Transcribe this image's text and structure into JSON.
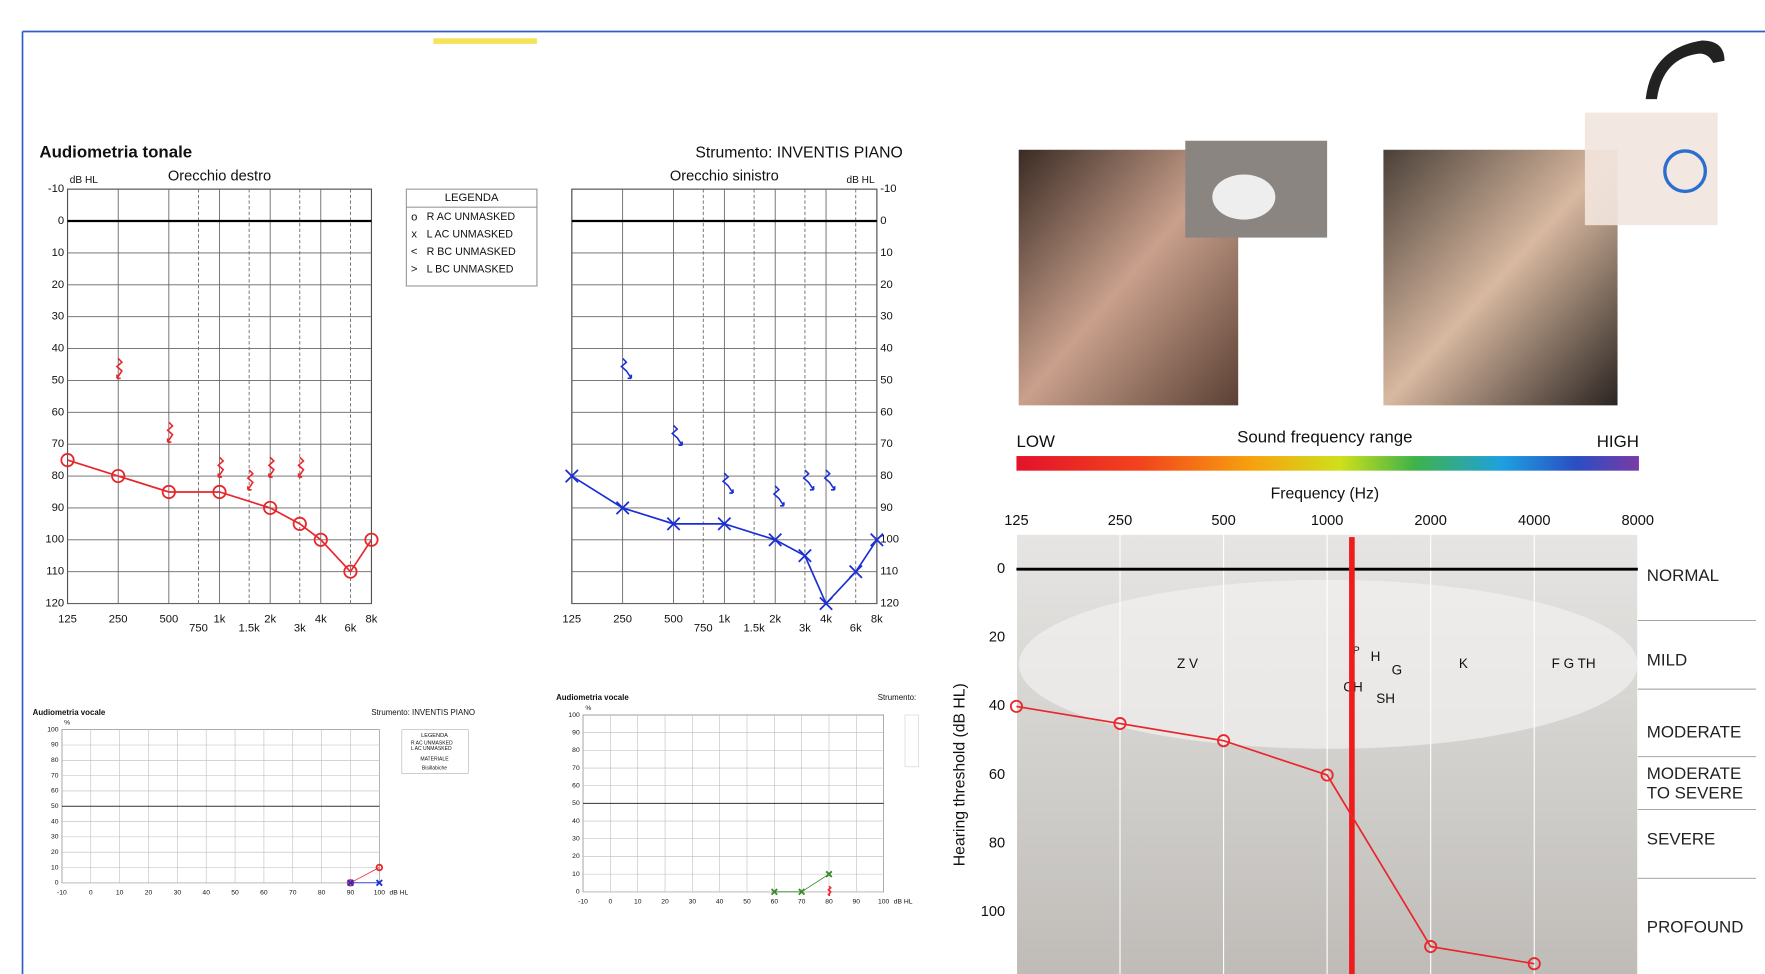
{
  "header": {
    "title": "Audiometria tonale",
    "instrument": "Strumento: INVENTIS PIANO"
  },
  "legend": {
    "title": "LEGENDA"
  },
  "chart_data": [
    {
      "type": "audiogram",
      "title": "Orecchio destro",
      "y_label": "dB HL",
      "log_x": true,
      "y_reversed": true,
      "xlim": [
        125,
        8000
      ],
      "xticks": [
        125,
        250,
        500,
        750,
        {
          "value": 1000,
          "label": "1k"
        },
        {
          "value": 1500,
          "label": "1.5k"
        },
        {
          "value": 2000,
          "label": "2k"
        },
        {
          "value": 3000,
          "label": "3k"
        },
        {
          "value": 4000,
          "label": "4k"
        },
        {
          "value": 6000,
          "label": "6k"
        },
        {
          "value": 8000,
          "label": "8k"
        }
      ],
      "ylim": [
        -10,
        120
      ],
      "yticks": [
        -10,
        0,
        10,
        20,
        30,
        40,
        50,
        60,
        70,
        80,
        90,
        100,
        110,
        120
      ],
      "series": [
        {
          "name": "R AC UNMASKED",
          "color": "#e8262b",
          "marker": "o",
          "line": true,
          "x": [
            125,
            250,
            500,
            1000,
            2000,
            3000,
            4000,
            6000,
            8000
          ],
          "values": [
            75,
            80,
            85,
            85,
            90,
            95,
            100,
            110,
            100
          ]
        },
        {
          "name": "R BC UNMASKED",
          "color": "#e8262b",
          "marker": "<",
          "line": false,
          "x": [
            250,
            500,
            1000,
            1500,
            2000,
            3000
          ],
          "values": [
            47,
            67,
            78,
            82,
            78,
            78
          ]
        }
      ]
    },
    {
      "type": "audiogram",
      "title": "Orecchio sinistro",
      "y_label": "dB HL",
      "log_x": true,
      "y_reversed": true,
      "xlim": [
        125,
        8000
      ],
      "xticks": [
        125,
        250,
        500,
        750,
        {
          "value": 1000,
          "label": "1k"
        },
        {
          "value": 1500,
          "label": "1.5k"
        },
        {
          "value": 2000,
          "label": "2k"
        },
        {
          "value": 3000,
          "label": "3k"
        },
        {
          "value": 4000,
          "label": "4k"
        },
        {
          "value": 6000,
          "label": "6k"
        },
        {
          "value": 8000,
          "label": "8k"
        }
      ],
      "ylim": [
        -10,
        120
      ],
      "yticks": [
        -10,
        0,
        10,
        20,
        30,
        40,
        50,
        60,
        70,
        80,
        90,
        100,
        110,
        120
      ],
      "series": [
        {
          "name": "L AC UNMASKED",
          "color": "#1a2fd6",
          "marker": "x",
          "line": true,
          "x": [
            125,
            250,
            500,
            1000,
            2000,
            3000,
            4000,
            6000,
            8000
          ],
          "values": [
            80,
            90,
            95,
            95,
            100,
            105,
            120,
            110,
            100
          ]
        },
        {
          "name": "L BC UNMASKED",
          "color": "#1a2fd6",
          "marker": ">",
          "line": false,
          "x": [
            250,
            500,
            1000,
            2000,
            3000,
            4000
          ],
          "values": [
            47,
            68,
            83,
            87,
            82,
            82
          ]
        }
      ]
    },
    {
      "type": "speech",
      "title": "Audiometria vocale",
      "instrument": "Strumento: INVENTIS PIANO",
      "y_label": "%",
      "x_label": "dB HL",
      "legend_title": "LEGENDA",
      "material_title": "MATERIALE",
      "material": "Bisillabiche",
      "xlim": [
        -10,
        100
      ],
      "xticks": [
        -10,
        0,
        10,
        20,
        30,
        40,
        50,
        60,
        70,
        80,
        90,
        100
      ],
      "ylim": [
        0,
        100
      ],
      "yticks": [
        0,
        10,
        20,
        30,
        40,
        50,
        60,
        70,
        80,
        90,
        100
      ],
      "series": [
        {
          "name": "R AC UNMASKED",
          "color": "#e8262b",
          "marker": "o",
          "line": true,
          "x": [
            90,
            100
          ],
          "values": [
            0,
            10
          ]
        },
        {
          "name": "L AC UNMASKED",
          "color": "#1a2fd6",
          "marker": "x",
          "line": true,
          "x": [
            90,
            100
          ],
          "values": [
            0,
            0
          ]
        }
      ]
    },
    {
      "type": "speech",
      "title": "Audiometria vocale",
      "instrument": "Strumento:",
      "y_label": "%",
      "x_label": "dB HL",
      "xlim": [
        -10,
        100
      ],
      "xticks": [
        -10,
        0,
        10,
        20,
        30,
        40,
        50,
        60,
        70,
        80,
        90,
        100
      ],
      "ylim": [
        0,
        100
      ],
      "yticks": [
        0,
        10,
        20,
        30,
        40,
        50,
        60,
        70,
        80,
        90,
        100
      ],
      "series": [
        {
          "color": "#3a8a2a",
          "marker": "x",
          "line": true,
          "x": [
            60,
            70,
            80
          ],
          "values": [
            0,
            0,
            10
          ]
        },
        {
          "color": "#e8262b",
          "marker": "<",
          "line": false,
          "x": [
            80
          ],
          "values": [
            0
          ]
        }
      ]
    },
    {
      "type": "hearing",
      "title": "Sound frequency range",
      "low_label": "LOW",
      "high_label": "HIGH",
      "x_label": "Frequency (Hz)",
      "y_label": "Hearing threshold (dB HL)",
      "log_x": true,
      "y_reversed": true,
      "xlim": [
        125,
        8000
      ],
      "xticks": [
        125,
        250,
        500,
        1000,
        2000,
        4000,
        8000
      ],
      "ylim": [
        -10,
        118
      ],
      "yticks": [
        0,
        20,
        40,
        60,
        80,
        100
      ],
      "severity": [
        "NORMAL",
        "MILD",
        "MODERATE",
        "MODERATE TO SEVERE",
        "SEVERE",
        "PROFOUND"
      ],
      "annotations": [
        "Z V",
        "P",
        "H",
        "G",
        "CH",
        "SH",
        "K",
        "F G TH"
      ],
      "series": [
        {
          "color": "#e8262b",
          "marker": "o",
          "line": true,
          "x": [
            125,
            250,
            500,
            1000,
            2000,
            4000
          ],
          "values": [
            40,
            45,
            50,
            60,
            110,
            115
          ]
        }
      ]
    }
  ]
}
